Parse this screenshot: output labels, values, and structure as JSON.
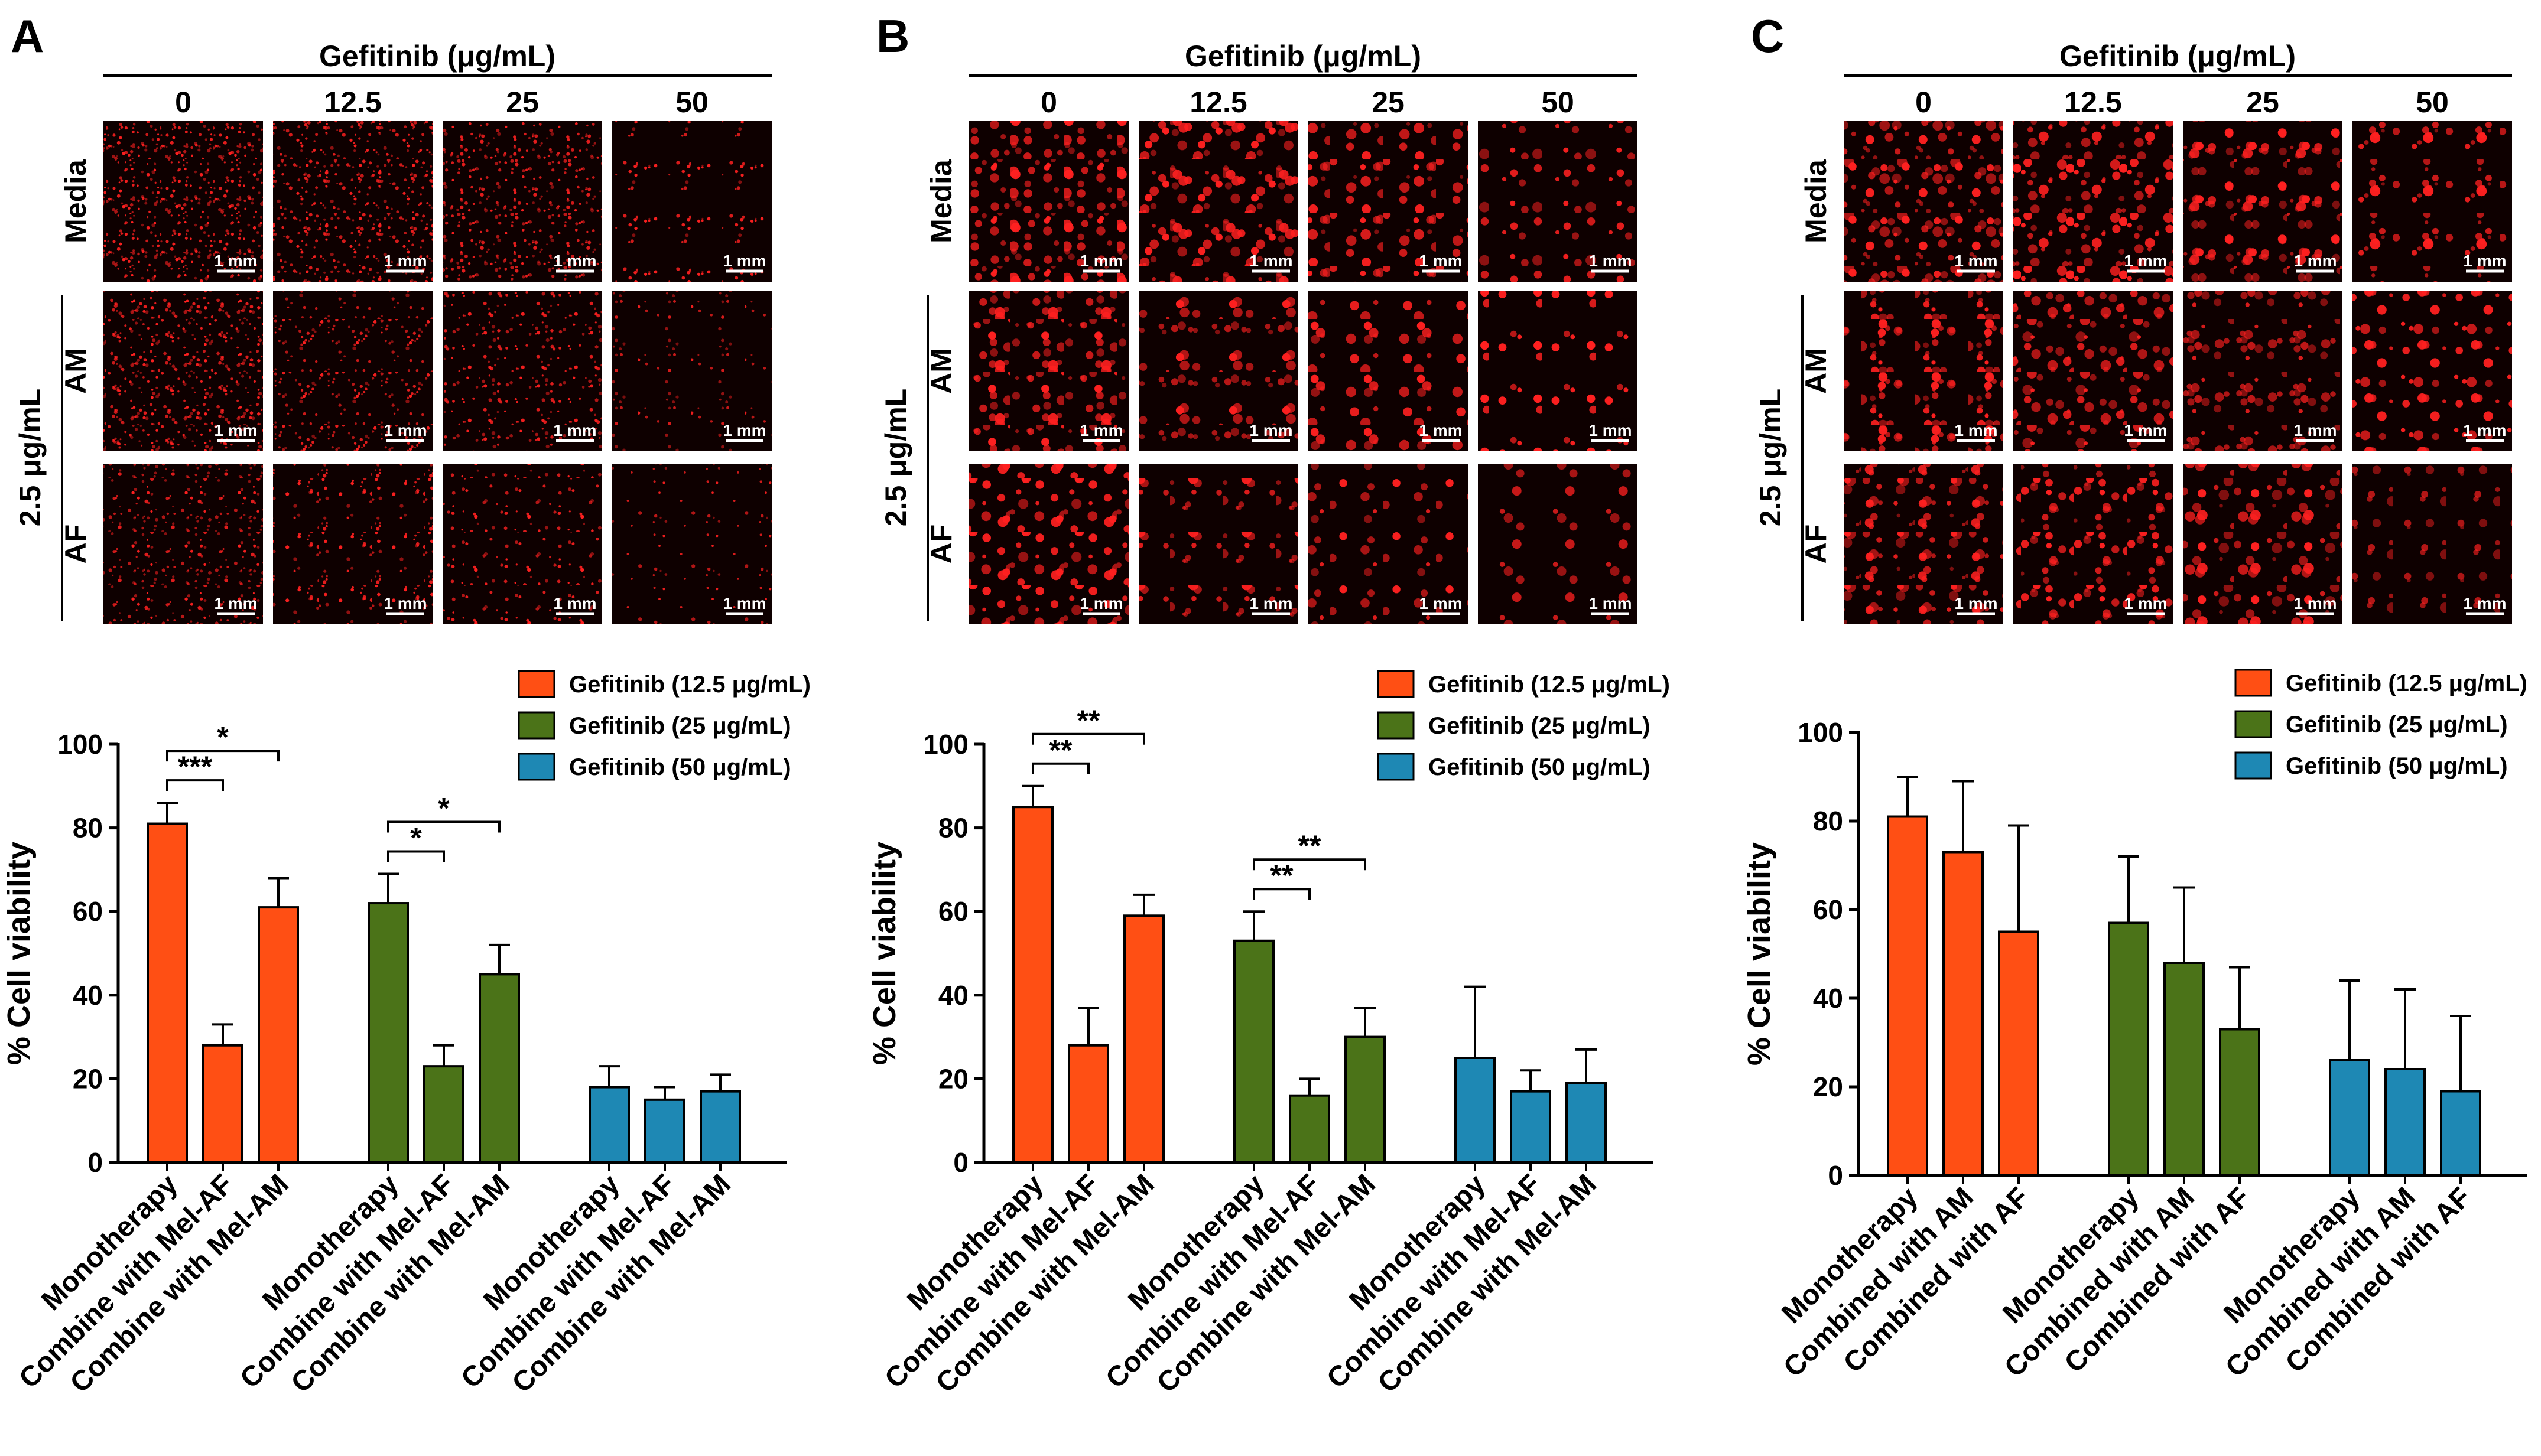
{
  "figure": {
    "drug_header": "Gefitinib (μg/mL)",
    "scale_bar": "1 mm",
    "cell_dose_label": "2.5 μg/mL",
    "row_labels": [
      "Media",
      "AM",
      "AF"
    ],
    "colors": {
      "orange": "#FF4F14",
      "green": "#4B7318",
      "blue": "#1E88B4",
      "micro_bg": "#0e0000",
      "micro_spot": "#ff2020"
    }
  },
  "panels": [
    {
      "letter": "A",
      "dose_labels": [
        "0",
        "12.5",
        "25",
        "50"
      ],
      "brightness": [
        [
          0.95,
          0.85,
          0.75,
          0.18
        ],
        [
          0.9,
          0.55,
          0.5,
          0.15
        ],
        [
          0.6,
          0.35,
          0.28,
          0.12
        ]
      ],
      "coarse": false,
      "chart_data": {
        "type": "bar",
        "ylabel": "% Cell viability",
        "ylim": [
          0,
          100
        ],
        "yticks": [
          0,
          20,
          40,
          60,
          80,
          100
        ],
        "legend": [
          "Gefitinib (12.5 μg/mL)",
          "Gefitinib (25 μg/mL)",
          "Gefitinib (50 μg/mL)"
        ],
        "categories": [
          "Monotherapy",
          "Combine with Mel-AF",
          "Combine with Mel-AM"
        ],
        "series": [
          {
            "name": "Gefitinib (12.5 μg/mL)",
            "values": [
              81,
              28,
              61
            ],
            "errors": [
              5,
              5,
              7
            ]
          },
          {
            "name": "Gefitinib (25 μg/mL)",
            "values": [
              62,
              23,
              45
            ],
            "errors": [
              7,
              5,
              7
            ]
          },
          {
            "name": "Gefitinib (50 μg/mL)",
            "values": [
              18,
              15,
              17
            ],
            "errors": [
              5,
              3,
              4
            ]
          }
        ],
        "significance": [
          {
            "series": 0,
            "from": 0,
            "to": 1,
            "label": "***"
          },
          {
            "series": 0,
            "from": 0,
            "to": 2,
            "label": "*"
          },
          {
            "series": 1,
            "from": 0,
            "to": 1,
            "label": "*"
          },
          {
            "series": 1,
            "from": 0,
            "to": 2,
            "label": "*"
          }
        ]
      }
    },
    {
      "letter": "B",
      "dose_labels": [
        "0",
        "12.5",
        "25",
        "50"
      ],
      "brightness": [
        [
          1.0,
          0.95,
          0.6,
          0.3
        ],
        [
          0.95,
          0.6,
          0.35,
          0.12
        ],
        [
          0.7,
          0.4,
          0.2,
          0.08
        ]
      ],
      "coarse": true,
      "chart_data": {
        "type": "bar",
        "ylabel": "% Cell viability",
        "ylim": [
          0,
          100
        ],
        "yticks": [
          0,
          20,
          40,
          60,
          80,
          100
        ],
        "legend": [
          "Gefitinib (12.5 μg/mL)",
          "Gefitinib (25 μg/mL)",
          "Gefitinib (50 μg/mL)"
        ],
        "categories": [
          "Monotherapy",
          "Combine with Mel-AF",
          "Combine with Mel-AM"
        ],
        "series": [
          {
            "name": "Gefitinib (12.5 μg/mL)",
            "values": [
              85,
              28,
              59
            ],
            "errors": [
              5,
              9,
              5
            ]
          },
          {
            "name": "Gefitinib (25 μg/mL)",
            "values": [
              53,
              16,
              30
            ],
            "errors": [
              7,
              4,
              7
            ]
          },
          {
            "name": "Gefitinib (50 μg/mL)",
            "values": [
              25,
              17,
              19
            ],
            "errors": [
              17,
              5,
              8
            ]
          }
        ],
        "significance": [
          {
            "series": 0,
            "from": 0,
            "to": 1,
            "label": "**"
          },
          {
            "series": 0,
            "from": 0,
            "to": 2,
            "label": "**"
          },
          {
            "series": 1,
            "from": 0,
            "to": 1,
            "label": "**"
          },
          {
            "series": 1,
            "from": 0,
            "to": 2,
            "label": "**"
          }
        ]
      }
    },
    {
      "letter": "C",
      "dose_labels": [
        "0",
        "12.5",
        "25",
        "50"
      ],
      "brightness": [
        [
          1.0,
          0.95,
          0.85,
          0.5
        ],
        [
          0.95,
          0.8,
          0.7,
          0.4
        ],
        [
          0.95,
          0.75,
          0.6,
          0.3
        ]
      ],
      "coarse": true,
      "chart_data": {
        "type": "bar",
        "ylabel": "% Cell viability",
        "ylim": [
          0,
          100
        ],
        "yticks": [
          0,
          20,
          40,
          60,
          80,
          100
        ],
        "legend": [
          "Gefitinib (12.5 μg/mL)",
          "Gefitinib (25 μg/mL)",
          "Gefitinib (50 μg/mL)"
        ],
        "categories": [
          "Monotherapy",
          "Combined with AM",
          "Combined with AF"
        ],
        "series": [
          {
            "name": "Gefitinib (12.5 μg/mL)",
            "values": [
              81,
              73,
              55
            ],
            "errors": [
              9,
              16,
              24
            ]
          },
          {
            "name": "Gefitinib (25 μg/mL)",
            "values": [
              57,
              48,
              33
            ],
            "errors": [
              15,
              17,
              14
            ]
          },
          {
            "name": "Gefitinib (50 μg/mL)",
            "values": [
              26,
              24,
              19
            ],
            "errors": [
              18,
              18,
              17
            ]
          }
        ],
        "significance": []
      }
    }
  ]
}
